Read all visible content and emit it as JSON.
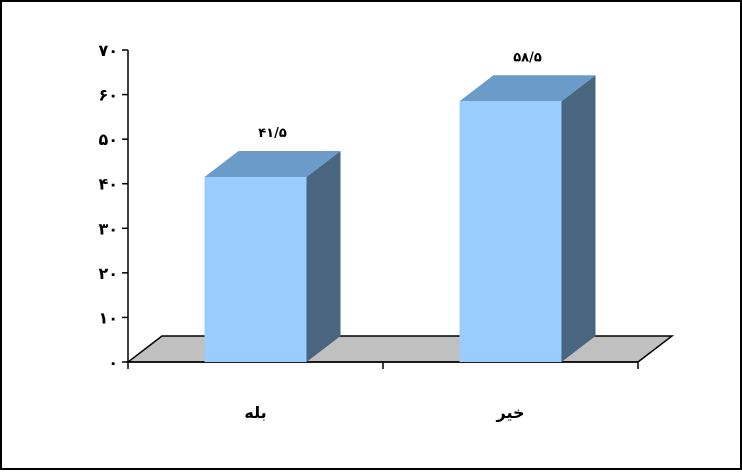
{
  "chart_data": {
    "type": "bar",
    "categories": [
      "بله",
      "خیر"
    ],
    "values": [
      41.5,
      58.5
    ],
    "value_labels": [
      "۴۱/۵",
      "۵۸/۵"
    ],
    "ylim": [
      0,
      70
    ],
    "yticks": [
      0,
      10,
      20,
      30,
      40,
      50,
      60,
      70
    ],
    "ytick_labels": [
      "۰",
      "۱۰",
      "۲۰",
      "۳۰",
      "۴۰",
      "۵۰",
      "۶۰",
      "۷۰"
    ],
    "title": "",
    "xlabel": "",
    "ylabel": "",
    "grid": false,
    "legend": "none",
    "style": "3d",
    "colors": {
      "bar_front": "#99ccff",
      "bar_top": "#6b9bc8",
      "bar_side": "#4a6580",
      "floor": "#c0c0c0"
    }
  }
}
